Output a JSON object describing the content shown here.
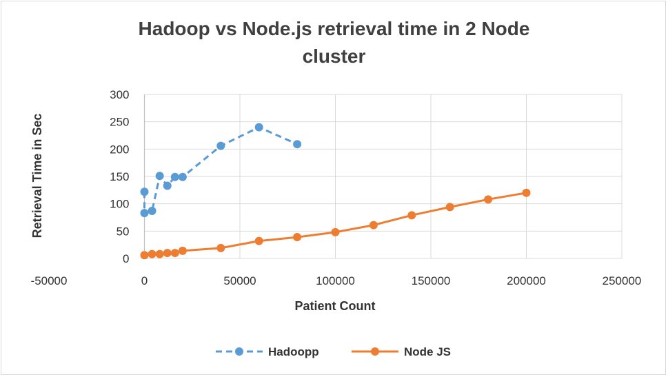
{
  "chart_data": {
    "type": "scatter",
    "title_lines": [
      "Hadoop vs Node.js retrieval time in 2 Node",
      "cluster"
    ],
    "xlabel": "Patient Count",
    "ylabel": "Retrieval Time in Sec",
    "xlim": [
      -50000,
      250000
    ],
    "ylim": [
      0,
      300
    ],
    "x_ticks": [
      -50000,
      0,
      50000,
      100000,
      150000,
      200000,
      250000
    ],
    "y_ticks": [
      0,
      50,
      100,
      150,
      200,
      250,
      300
    ],
    "grid": "vertical and horizontal",
    "legend_position": "bottom",
    "series": [
      {
        "name": "Hadoopp",
        "color": "#5b9bd5",
        "line_style": "dashed",
        "points": [
          [
            0,
            122
          ],
          [
            0,
            83
          ],
          [
            4000,
            87
          ],
          [
            8000,
            151
          ],
          [
            12000,
            133
          ],
          [
            16000,
            149
          ],
          [
            20000,
            149
          ],
          [
            40000,
            206
          ],
          [
            60000,
            240
          ],
          [
            80000,
            209
          ]
        ]
      },
      {
        "name": "Node JS",
        "color": "#ed7d31",
        "line_style": "solid",
        "points": [
          [
            0,
            6
          ],
          [
            4000,
            8
          ],
          [
            8000,
            8
          ],
          [
            12000,
            10
          ],
          [
            16000,
            10
          ],
          [
            20000,
            14
          ],
          [
            40000,
            19
          ],
          [
            60000,
            32
          ],
          [
            80000,
            39
          ],
          [
            100000,
            48
          ],
          [
            120000,
            61
          ],
          [
            140000,
            79
          ],
          [
            160000,
            94
          ],
          [
            180000,
            108
          ],
          [
            200000,
            120
          ]
        ]
      }
    ]
  }
}
